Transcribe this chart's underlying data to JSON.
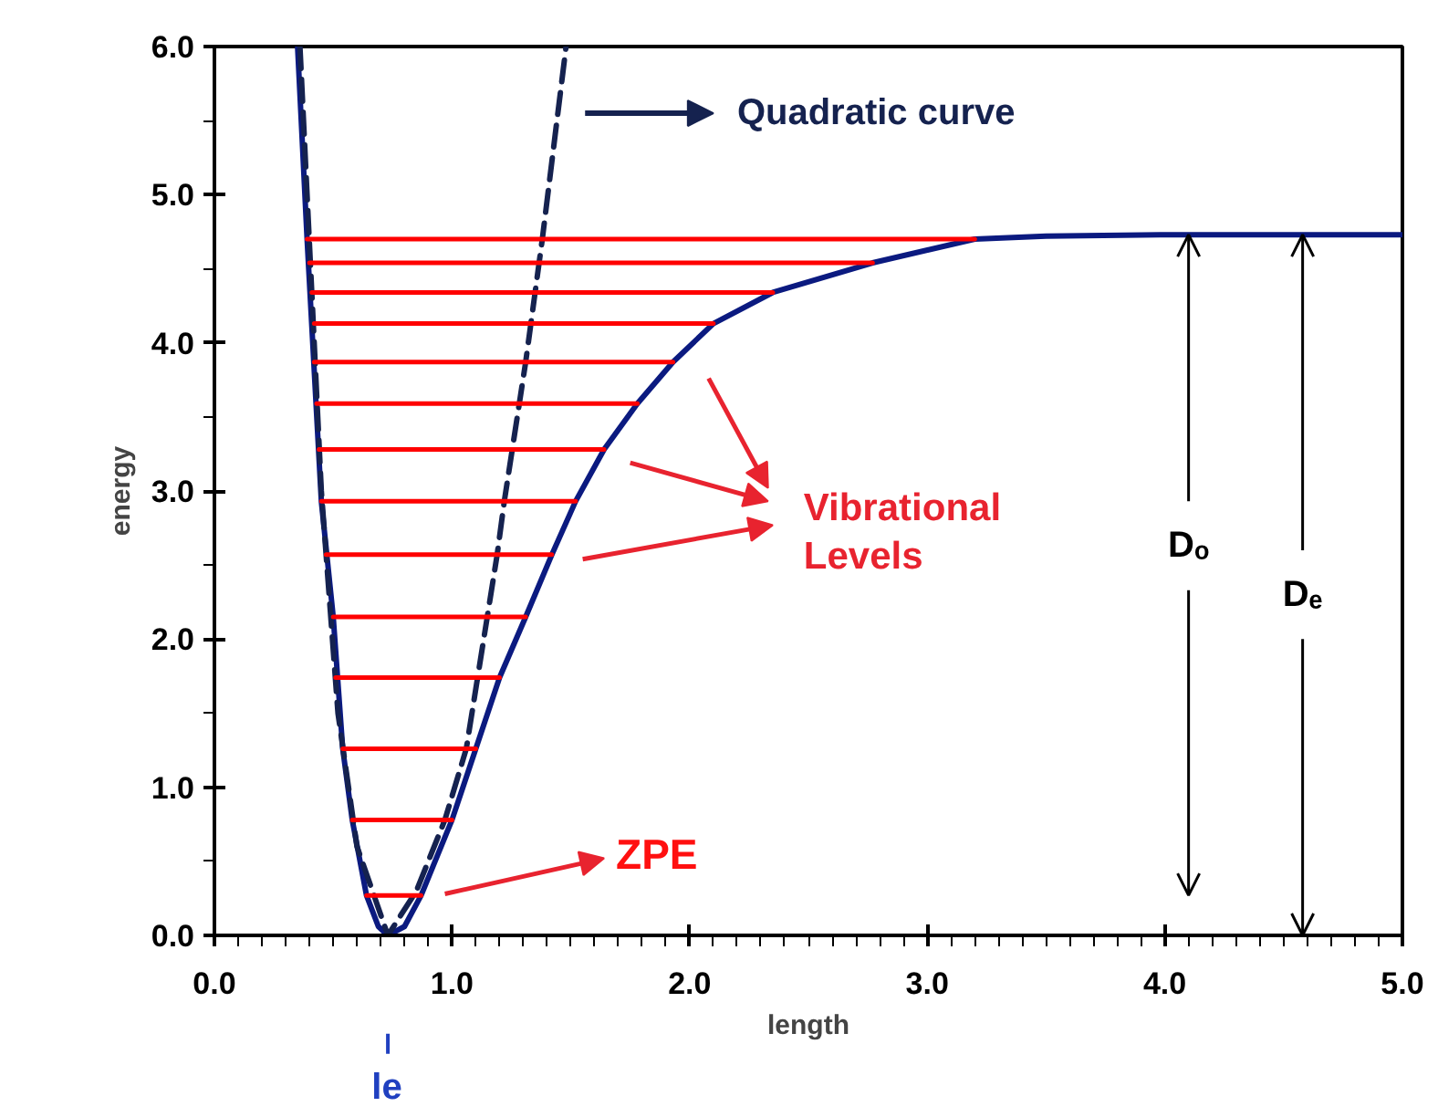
{
  "chart_data": {
    "type": "line",
    "xlabel": "length",
    "ylabel": "energy",
    "xlim": [
      0,
      5
    ],
    "ylim": [
      0,
      6
    ],
    "xticks": [
      {
        "value": 0,
        "label": "0.0"
      },
      {
        "value": 1,
        "label": "1.0"
      },
      {
        "value": 2,
        "label": "2.0"
      },
      {
        "value": 3,
        "label": "3.0"
      },
      {
        "value": 4,
        "label": "4.0"
      },
      {
        "value": 5,
        "label": "5.0"
      }
    ],
    "yticks": [
      {
        "value": 0,
        "label": "0.0"
      },
      {
        "value": 1,
        "label": "1.0"
      },
      {
        "value": 2,
        "label": "2.0"
      },
      {
        "value": 3,
        "label": "3.0"
      },
      {
        "value": 4,
        "label": "4.0"
      },
      {
        "value": 5,
        "label": "5.0"
      },
      {
        "value": 6,
        "label": "6.0"
      }
    ],
    "grid": false,
    "marker": "none",
    "series": [
      {
        "color": "#0b1a80",
        "line_style": "solid",
        "x": [
          0.35,
          0.39,
          0.45,
          0.5,
          0.54,
          0.58,
          0.64,
          0.69,
          0.73,
          0.8,
          0.87,
          1.0,
          1.1,
          1.2,
          1.31,
          1.42,
          1.52,
          1.64,
          1.78,
          1.93,
          2.1,
          2.35,
          2.77,
          3.2,
          3.5,
          4.0,
          5.0
        ],
        "values": [
          6.0,
          4.7,
          2.93,
          2.15,
          1.26,
          0.78,
          0.27,
          0.06,
          0.0,
          0.06,
          0.27,
          0.78,
          1.26,
          1.74,
          2.15,
          2.57,
          2.93,
          3.28,
          3.59,
          3.87,
          4.13,
          4.34,
          4.54,
          4.7,
          4.72,
          4.73,
          4.73
        ]
      },
      {
        "name": "Quadratic curve",
        "color": "#15224f",
        "line_style": "dashed",
        "x": [
          0.36,
          0.45,
          0.52,
          0.6,
          0.73,
          0.85,
          0.97,
          1.06,
          1.19,
          1.22,
          1.31,
          1.38,
          1.48
        ],
        "values": [
          6.0,
          3.0,
          1.5,
          0.6,
          0.0,
          0.3,
          0.78,
          1.26,
          2.57,
          2.93,
          3.87,
          4.7,
          6.0
        ]
      },
      {
        "name": "Vibrational Levels",
        "color": "#ff0000",
        "line_style": "solid",
        "x": [
          0.39,
          3.2,
          null,
          0.4,
          2.77,
          null,
          0.41,
          2.35,
          null,
          0.42,
          2.1,
          null,
          0.42,
          1.93,
          null,
          0.43,
          1.78,
          null,
          0.44,
          1.64,
          null,
          0.45,
          1.52,
          null,
          0.47,
          1.42,
          null,
          0.5,
          1.31,
          null,
          0.51,
          1.2,
          null,
          0.54,
          1.1,
          null,
          0.58,
          1.0,
          null,
          0.64,
          0.87
        ],
        "values": [
          4.7,
          4.7,
          null,
          4.54,
          4.54,
          null,
          4.34,
          4.34,
          null,
          4.13,
          4.13,
          null,
          3.87,
          3.87,
          null,
          3.59,
          3.59,
          null,
          3.28,
          3.28,
          null,
          2.93,
          2.93,
          null,
          2.57,
          2.57,
          null,
          2.15,
          2.15,
          null,
          1.74,
          1.74,
          null,
          1.26,
          1.26,
          null,
          0.78,
          0.78,
          null,
          0.27,
          0.27
        ]
      }
    ],
    "annotations": [
      "ZPE",
      {
        "text": "Dₒ",
        "x": 4.1,
        "y": 4.73
      },
      {
        "text": "Dₑ",
        "x": 4.58,
        "y": 4.73
      },
      "le"
    ]
  }
}
